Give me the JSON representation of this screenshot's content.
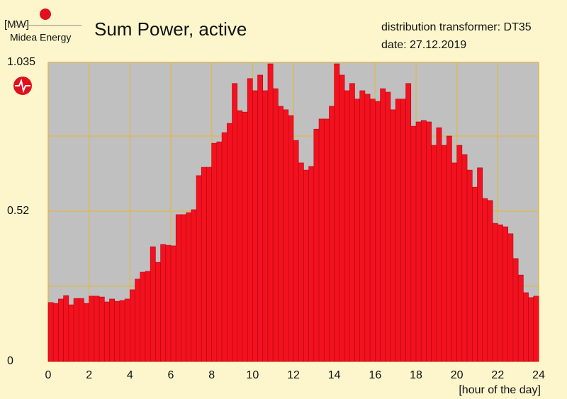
{
  "chart_data": {
    "type": "histogram",
    "title": "Sum Power, active",
    "subtitle": [
      "distribution transformer: DT35",
      "date: 27.12.2019"
    ],
    "brand": "Midea Energy",
    "y_label": "[MW]",
    "x_label": "[hour of the day]",
    "color": "#f2121f",
    "bins": [
      0,
      0.25,
      0.5,
      0.75,
      1,
      1.25,
      1.5,
      1.75,
      2,
      2.25,
      2.5,
      2.75,
      3,
      3.25,
      3.5,
      3.75,
      4,
      4.25,
      4.5,
      4.75,
      5,
      5.25,
      5.5,
      5.75,
      6,
      6.25,
      6.5,
      6.75,
      7,
      7.25,
      7.5,
      7.75,
      8,
      8.25,
      8.5,
      8.75,
      9,
      9.25,
      9.5,
      9.75,
      10,
      10.25,
      10.5,
      10.75,
      11,
      11.25,
      11.5,
      11.75,
      12,
      12.25,
      12.5,
      12.75,
      13,
      13.25,
      13.5,
      13.75,
      14,
      14.25,
      14.5,
      14.75,
      15,
      15.25,
      15.5,
      15.75,
      16,
      16.25,
      16.5,
      16.75,
      17,
      17.25,
      17.5,
      17.75,
      18,
      18.25,
      18.5,
      18.75,
      19,
      19.25,
      19.5,
      19.75,
      20,
      20.25,
      20.5,
      20.75,
      21,
      21.25,
      21.5,
      21.75,
      22,
      22.25,
      22.5,
      22.75,
      23,
      23.25,
      23.5,
      23.75,
      24
    ],
    "values": [
      0.204,
      0.201,
      0.216,
      0.228,
      0.196,
      0.218,
      0.218,
      0.201,
      0.226,
      0.226,
      0.223,
      0.206,
      0.216,
      0.208,
      0.211,
      0.216,
      0.248,
      0.285,
      0.309,
      0.312,
      0.397,
      0.343,
      0.405,
      0.402,
      0.4,
      0.508,
      0.508,
      0.515,
      0.525,
      0.643,
      0.672,
      0.672,
      0.755,
      0.76,
      0.792,
      0.824,
      0.962,
      0.868,
      0.863,
      0.979,
      0.937,
      0.991,
      0.937,
      1.03,
      0.944,
      0.883,
      0.871,
      0.851,
      0.765,
      0.687,
      0.662,
      0.675,
      0.804,
      0.839,
      0.839,
      0.883,
      1.03,
      0.991,
      0.937,
      0.962,
      0.908,
      0.937,
      0.925,
      0.908,
      0.9,
      0.944,
      0.932,
      0.871,
      0.908,
      0.908,
      0.962,
      0.814,
      0.829,
      0.834,
      0.829,
      0.748,
      0.809,
      0.748,
      0.78,
      0.687,
      0.748,
      0.716,
      0.662,
      0.603,
      0.67,
      0.564,
      0.557,
      0.478,
      0.473,
      0.466,
      0.442,
      0.356,
      0.299,
      0.238,
      0.221,
      0.226
    ],
    "xlim": [
      0,
      24
    ],
    "xticks": [
      0,
      2,
      4,
      6,
      8,
      10,
      12,
      14,
      16,
      18,
      20,
      22,
      24
    ],
    "ylim": [
      0,
      1.035
    ],
    "yticks": [
      0,
      0.52,
      1.035
    ],
    "minor_yticks": [
      0.26,
      0.78
    ],
    "grid": true
  }
}
